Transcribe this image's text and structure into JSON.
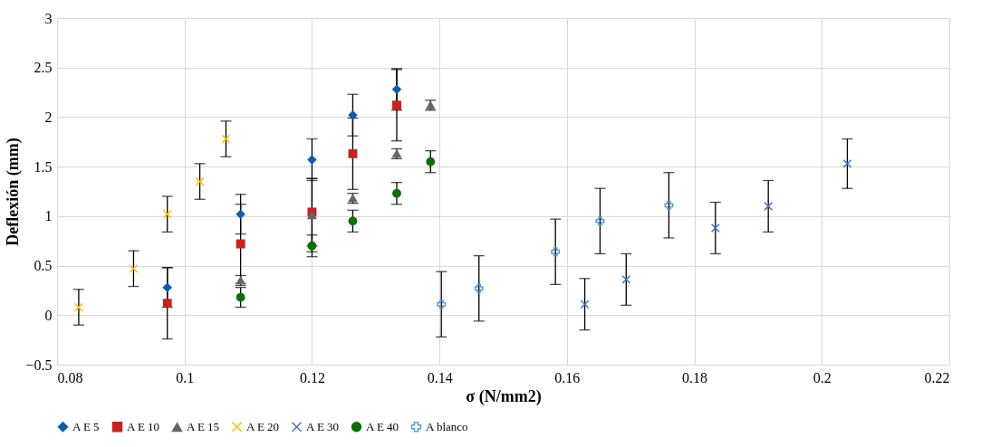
{
  "chart_data": {
    "type": "scatter",
    "xlabel": "σ (N/mm2)",
    "ylabel": "Deflexión (mm)",
    "xlim": [
      0.08,
      0.22
    ],
    "xticks": [
      0.08,
      0.1,
      0.12,
      0.14,
      0.16,
      0.18,
      0.2,
      0.22
    ],
    "ylim": [
      -0.5,
      3
    ],
    "yticks": [
      -0.5,
      0,
      0.5,
      1,
      1.5,
      2,
      2.5,
      3
    ],
    "grid": true,
    "legend": "bottom",
    "series": [
      {
        "name": "A E 5",
        "color": "#0b5cad",
        "marker": "diamond",
        "x": [
          0.0973,
          0.1088,
          0.12,
          0.1264,
          0.1333
        ],
        "values": [
          0.28,
          1.02,
          1.57,
          2.02,
          2.28
        ],
        "errors": [
          0.2,
          0.2,
          0.21,
          0.21,
          0.21
        ]
      },
      {
        "name": "A E 10",
        "color": "#c9211e",
        "marker": "square",
        "x": [
          0.0973,
          0.1088,
          0.12,
          0.1264,
          0.1333
        ],
        "values": [
          0.12,
          0.72,
          1.04,
          1.63,
          2.12
        ],
        "errors": [
          0.36,
          0.4,
          0.34,
          0.36,
          0.36
        ]
      },
      {
        "name": "A E 15",
        "color": "#666666",
        "marker": "triangle",
        "x": [
          0.1088,
          0.12,
          0.1264,
          0.1333,
          0.1386
        ],
        "values": [
          0.35,
          1.01,
          1.18,
          1.63,
          2.12
        ],
        "errors": [
          0.05,
          0.37,
          0.05,
          0.05,
          0.05
        ]
      },
      {
        "name": "A E 20",
        "color": "#ffc000",
        "marker": "cross",
        "x": [
          0.0834,
          0.092,
          0.0973,
          0.1024,
          0.1065
        ],
        "values": [
          0.08,
          0.47,
          1.02,
          1.35,
          1.78
        ],
        "errors": [
          0.18,
          0.18,
          0.18,
          0.18,
          0.18
        ]
      },
      {
        "name": "A E 30",
        "color": "#4472c4",
        "marker": "cross",
        "x": [
          0.1628,
          0.1693,
          0.1833,
          0.1916,
          0.204
        ],
        "values": [
          0.11,
          0.36,
          0.88,
          1.1,
          1.53
        ],
        "errors": [
          0.26,
          0.26,
          0.26,
          0.26,
          0.25
        ]
      },
      {
        "name": "A E 40",
        "color": "#0d6e0d",
        "marker": "circle",
        "x": [
          0.1088,
          0.12,
          0.1264,
          0.1333,
          0.1386
        ],
        "values": [
          0.18,
          0.7,
          0.95,
          1.23,
          1.55
        ],
        "errors": [
          0.1,
          0.11,
          0.11,
          0.11,
          0.11
        ]
      },
      {
        "name": "A blanco",
        "color": "#5b9bd5",
        "marker": "plus",
        "x": [
          0.1403,
          0.1462,
          0.1582,
          0.1652,
          0.176
        ],
        "values": [
          0.11,
          0.27,
          0.64,
          0.95,
          1.11
        ],
        "errors": [
          0.33,
          0.33,
          0.33,
          0.33,
          0.33
        ]
      }
    ]
  }
}
